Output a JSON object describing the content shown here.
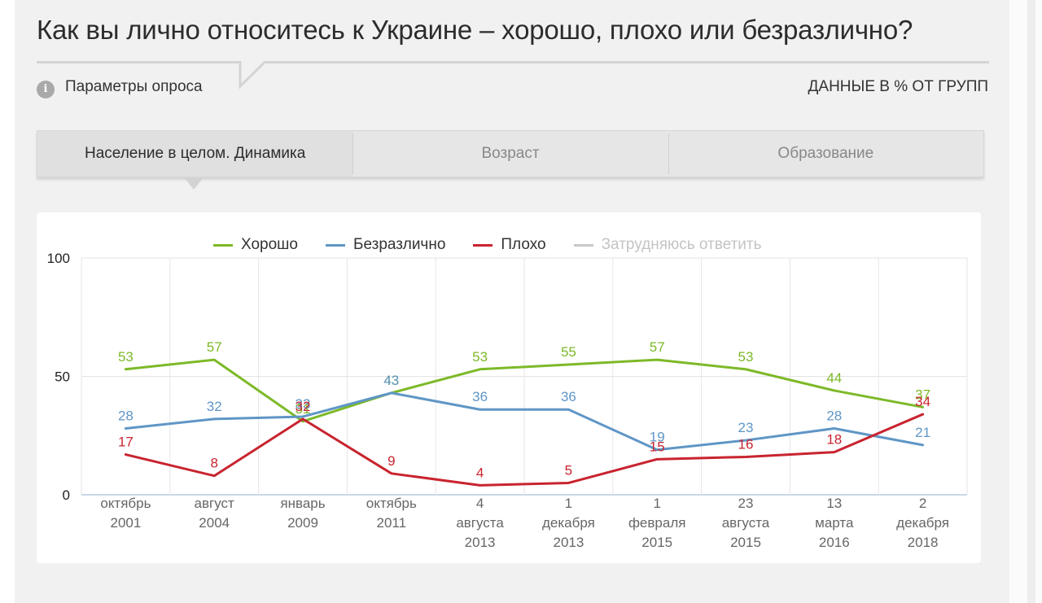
{
  "page": {
    "title": "Как вы лично относитесь к Украине – хорошо, плохо или безразлично?",
    "params_label": "Параметры опроса",
    "params_icon": "info-icon",
    "units_label": "ДАННЫЕ В % ОТ ГРУПП"
  },
  "tabs": [
    {
      "label": "Население в целом. Динамика",
      "active": true
    },
    {
      "label": "Возраст",
      "active": false
    },
    {
      "label": "Образование",
      "active": false
    }
  ],
  "legend": [
    {
      "name": "Хорошо",
      "color": "#7db928",
      "inactive": false
    },
    {
      "name": "Безразлично",
      "color": "#5f96c6",
      "inactive": false
    },
    {
      "name": "Плохо",
      "color": "#c8242f",
      "inactive": false
    },
    {
      "name": "Затрудняюсь ответить",
      "color": "#c8c8c8",
      "inactive": true
    }
  ],
  "chart_data": {
    "type": "line",
    "title": "",
    "xlabel": "",
    "ylabel": "",
    "ylim": [
      0,
      100
    ],
    "yticks": [
      0,
      50,
      100
    ],
    "grid": true,
    "legend_position": "top",
    "categories": [
      [
        "октябрь",
        "2001"
      ],
      [
        "август",
        "2004"
      ],
      [
        "январь",
        "2009"
      ],
      [
        "октябрь",
        "2011"
      ],
      [
        "4",
        "августа",
        "2013"
      ],
      [
        "1",
        "декабря",
        "2013"
      ],
      [
        "1",
        "февраля",
        "2015"
      ],
      [
        "23",
        "августа",
        "2015"
      ],
      [
        "13",
        "марта",
        "2016"
      ],
      [
        "2",
        "декабря",
        "2018"
      ]
    ],
    "series": [
      {
        "name": "Хорошо",
        "color": "#7db928",
        "values": [
          53,
          57,
          31,
          43,
          53,
          55,
          57,
          53,
          44,
          37
        ]
      },
      {
        "name": "Безразлично",
        "color": "#5f96c6",
        "values": [
          28,
          32,
          33,
          43,
          36,
          36,
          19,
          23,
          28,
          21
        ]
      },
      {
        "name": "Плохо",
        "color": "#c8242f",
        "values": [
          17,
          8,
          32,
          9,
          4,
          5,
          15,
          16,
          18,
          34
        ]
      }
    ]
  }
}
